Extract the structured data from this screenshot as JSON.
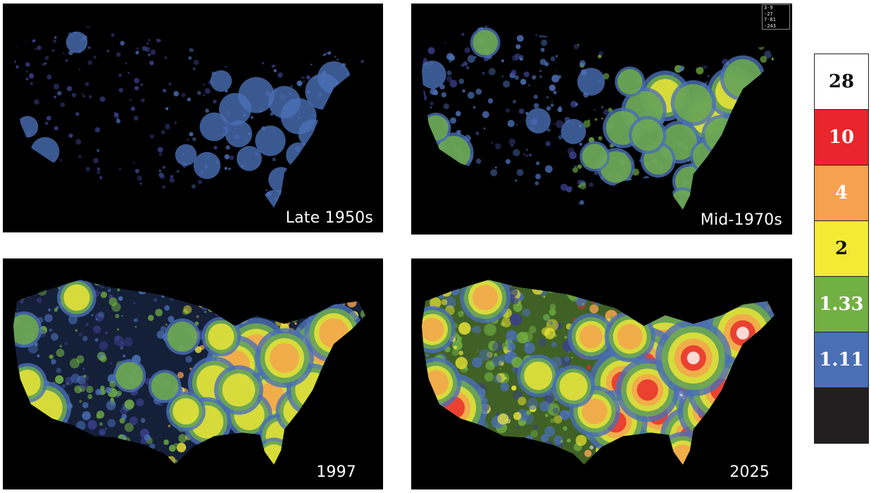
{
  "panels": [
    {
      "id": "p1",
      "label": "Late 1950s",
      "intensity": 0.18
    },
    {
      "id": "p2",
      "label": "Mid-1970s",
      "intensity": 0.42
    },
    {
      "id": "p3",
      "label": "1997",
      "intensity": 0.68
    },
    {
      "id": "p4",
      "label": "2025",
      "intensity": 1.0
    }
  ],
  "mini_legend": [
    "3-9",
    "-27",
    "7-81",
    "-243"
  ],
  "scale": [
    {
      "label": "28",
      "color": "#ffffff",
      "text_color": "#111111"
    },
    {
      "label": "10",
      "color": "#e8262b",
      "text_color": "#ffffff"
    },
    {
      "label": "4",
      "color": "#f6a14f",
      "text_color": "#ffffff"
    },
    {
      "label": "2",
      "color": "#f3ea35",
      "text_color": "#111111"
    },
    {
      "label": "1.33",
      "color": "#72b043",
      "text_color": "#ffffff"
    },
    {
      "label": "1.11",
      "color": "#4a6fb5",
      "text_color": "#ffffff"
    },
    {
      "label": "",
      "color": "#231f20",
      "text_color": "#ffffff"
    }
  ]
}
